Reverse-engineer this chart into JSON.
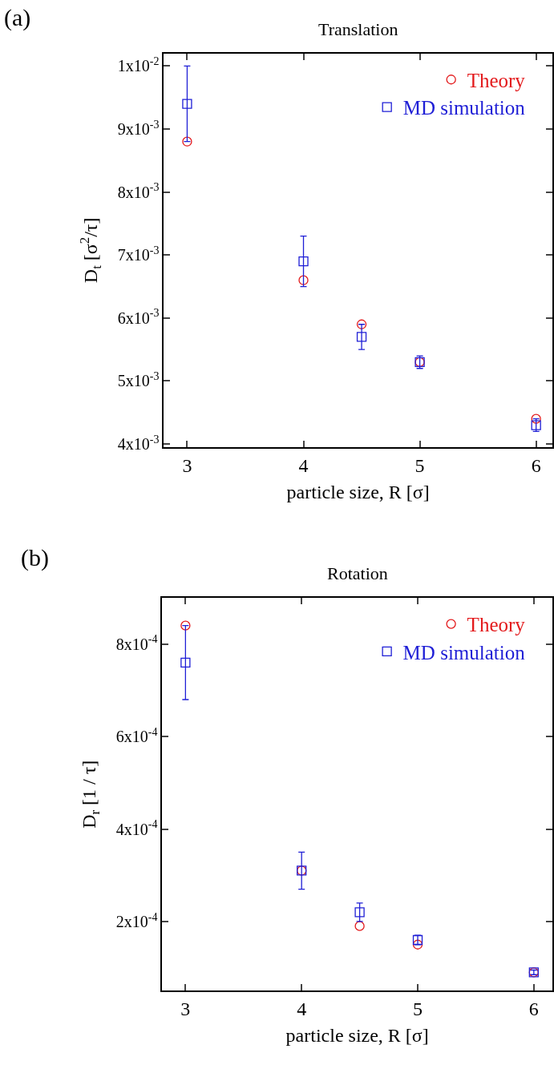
{
  "chart_data": [
    {
      "type": "scatter",
      "title": "Translation",
      "xlabel": "particle size, R [σ]",
      "ylabel": "D$_{t}$ [σ$^{2}$/τ]",
      "annotations": [
        "(a)"
      ],
      "x": [
        3,
        4,
        4.5,
        5,
        6
      ],
      "xlim": [
        2.8,
        6.14
      ],
      "xticks": [
        3,
        4,
        5,
        6
      ],
      "ylim": [
        0.00395,
        0.0102
      ],
      "yticks": [
        {
          "value": 0.004,
          "label": "4x10$^{-3}$"
        },
        {
          "value": 0.005,
          "label": "5x10$^{-3}$"
        },
        {
          "value": 0.006,
          "label": "6x10$^{-3}$"
        },
        {
          "value": 0.007,
          "label": "7x10$^{-3}$"
        },
        {
          "value": 0.008,
          "label": "8x10$^{-3}$"
        },
        {
          "value": 0.009,
          "label": "9x10$^{-3}$"
        },
        {
          "value": 0.01,
          "label": "1x10$^{-2}$"
        }
      ],
      "legend": "top right",
      "series": [
        {
          "name": "Theory",
          "color": "#e31a1c",
          "marker": "circle",
          "values": [
            0.0088,
            0.0066,
            0.0059,
            0.0053,
            0.0044
          ]
        },
        {
          "name": "MD simulation",
          "color": "#1f1fd6",
          "marker": "square",
          "values": [
            0.0094,
            0.0069,
            0.0057,
            0.0053,
            0.0043
          ],
          "errors": [
            0.0006,
            0.0004,
            0.0002,
            0.0001,
            0.0001
          ]
        }
      ]
    },
    {
      "type": "scatter",
      "title": "Rotation",
      "xlabel": "particle size, R [σ]",
      "ylabel": "D$_{r}$ [1 / τ]",
      "annotations": [
        "(b)"
      ],
      "x": [
        3,
        4,
        4.5,
        5,
        6
      ],
      "xlim": [
        2.8,
        6.16
      ],
      "xticks": [
        3,
        4,
        5,
        6
      ],
      "ylim": [
        5e-05,
        0.0009
      ],
      "yticks": [
        {
          "value": 0.0002,
          "label": "2x10$^{-4}$"
        },
        {
          "value": 0.0004,
          "label": "4x10$^{-4}$"
        },
        {
          "value": 0.0006,
          "label": "6x10$^{-4}$"
        },
        {
          "value": 0.0008,
          "label": "8x10$^{-4}$"
        }
      ],
      "legend": "top right",
      "series": [
        {
          "name": "Theory",
          "color": "#e31a1c",
          "marker": "circle",
          "values": [
            0.00084,
            0.00031,
            0.00019,
            0.00015,
            9e-05
          ]
        },
        {
          "name": "MD simulation",
          "color": "#1f1fd6",
          "marker": "square",
          "values": [
            0.00076,
            0.00031,
            0.00022,
            0.00016,
            9e-05
          ],
          "errors": [
            8e-05,
            4e-05,
            2e-05,
            1e-05,
            5e-06
          ]
        }
      ]
    }
  ]
}
